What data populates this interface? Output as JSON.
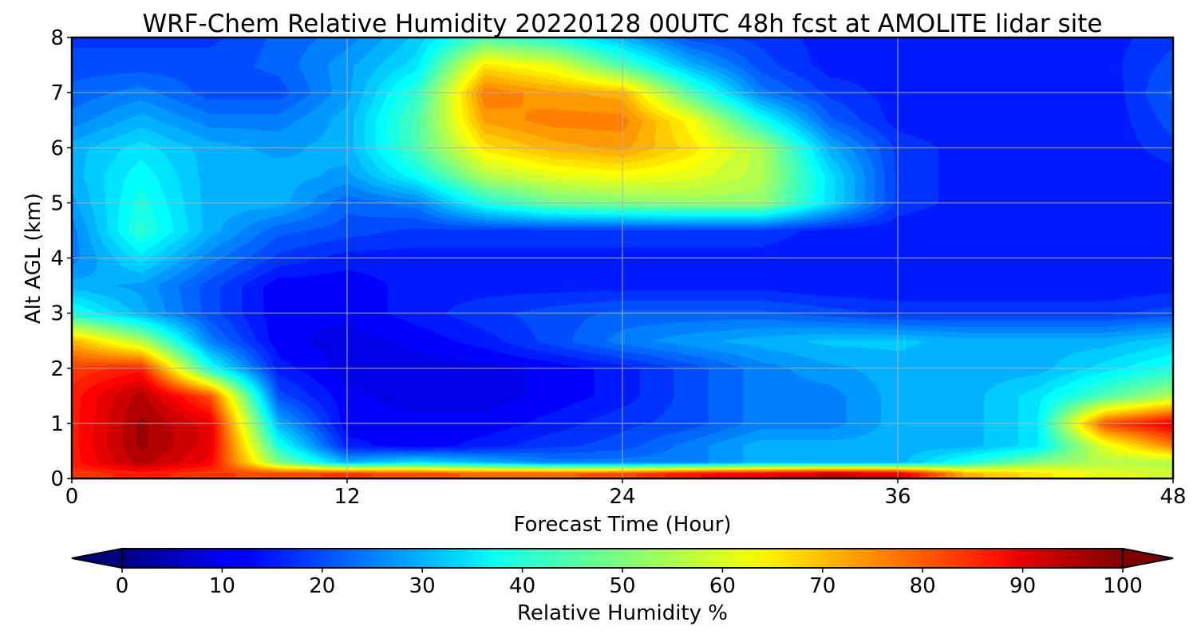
{
  "chart_data": {
    "type": "heatmap",
    "title": "WRF-Chem Relative Humidity 20220128 00UTC 48h fcst at AMOLITE lidar site",
    "xlabel": "Forecast Time (Hour)",
    "ylabel": "Alt AGL (km)",
    "x_ticks": [
      0,
      12,
      24,
      36,
      48
    ],
    "y_ticks": [
      0,
      1,
      2,
      3,
      4,
      5,
      6,
      7,
      8
    ],
    "xlim": [
      0,
      48
    ],
    "ylim": [
      0,
      8
    ],
    "grid": true,
    "colorbar": {
      "label": "Relative Humidity %",
      "ticks": [
        0,
        10,
        20,
        30,
        40,
        50,
        60,
        70,
        80,
        90,
        100
      ],
      "range": [
        0,
        100
      ],
      "extend": "both",
      "colormap": "jet",
      "orientation": "horizontal",
      "placement": "bottom"
    },
    "x": [
      0,
      3,
      6,
      9,
      12,
      15,
      18,
      21,
      24,
      27,
      30,
      33,
      36,
      39,
      42,
      45,
      48
    ],
    "y": [
      0.1,
      0.3,
      0.6,
      1.0,
      1.5,
      2.0,
      2.5,
      3.0,
      3.5,
      4.0,
      4.5,
      5.0,
      5.5,
      6.0,
      6.5,
      7.0,
      7.5,
      8.0
    ],
    "z": [
      [
        82,
        85,
        82,
        80,
        82,
        80,
        78,
        78,
        80,
        86,
        88,
        92,
        90,
        70,
        65,
        60,
        58
      ],
      [
        85,
        95,
        88,
        50,
        30,
        35,
        30,
        25,
        25,
        25,
        30,
        30,
        30,
        40,
        50,
        55,
        55
      ],
      [
        85,
        97,
        90,
        40,
        15,
        12,
        15,
        18,
        20,
        25,
        30,
        30,
        30,
        30,
        35,
        60,
        75
      ],
      [
        85,
        97,
        90,
        30,
        12,
        12,
        12,
        15,
        18,
        20,
        25,
        25,
        30,
        30,
        35,
        80,
        90
      ],
      [
        85,
        95,
        80,
        20,
        12,
        10,
        10,
        12,
        15,
        20,
        25,
        25,
        30,
        30,
        35,
        45,
        55
      ],
      [
        82,
        85,
        40,
        15,
        10,
        10,
        10,
        12,
        15,
        20,
        25,
        28,
        30,
        30,
        30,
        35,
        40
      ],
      [
        70,
        55,
        25,
        12,
        10,
        12,
        15,
        20,
        25,
        28,
        30,
        32,
        32,
        30,
        30,
        30,
        33
      ],
      [
        40,
        30,
        20,
        12,
        12,
        15,
        18,
        20,
        22,
        22,
        22,
        20,
        18,
        18,
        18,
        18,
        20
      ],
      [
        30,
        28,
        20,
        12,
        12,
        15,
        15,
        15,
        15,
        15,
        15,
        14,
        14,
        14,
        14,
        14,
        15
      ],
      [
        25,
        35,
        25,
        18,
        15,
        15,
        15,
        15,
        15,
        15,
        15,
        14,
        14,
        14,
        14,
        14,
        15
      ],
      [
        25,
        42,
        30,
        22,
        20,
        18,
        18,
        18,
        18,
        18,
        18,
        15,
        14,
        14,
        14,
        14,
        15
      ],
      [
        28,
        40,
        30,
        30,
        22,
        25,
        40,
        48,
        50,
        52,
        52,
        35,
        18,
        15,
        14,
        14,
        15
      ],
      [
        30,
        38,
        30,
        30,
        28,
        38,
        55,
        60,
        62,
        60,
        55,
        35,
        18,
        15,
        14,
        14,
        15
      ],
      [
        30,
        35,
        30,
        28,
        30,
        45,
        65,
        70,
        72,
        65,
        55,
        30,
        18,
        15,
        14,
        14,
        18
      ],
      [
        25,
        30,
        25,
        25,
        30,
        45,
        72,
        75,
        75,
        62,
        40,
        22,
        15,
        14,
        14,
        14,
        20
      ],
      [
        22,
        25,
        20,
        20,
        28,
        42,
        76,
        72,
        70,
        45,
        25,
        18,
        15,
        14,
        14,
        14,
        22
      ],
      [
        20,
        20,
        20,
        22,
        28,
        35,
        65,
        60,
        45,
        30,
        20,
        15,
        15,
        15,
        15,
        15,
        20
      ],
      [
        18,
        18,
        18,
        22,
        25,
        32,
        45,
        40,
        30,
        20,
        18,
        15,
        15,
        15,
        15,
        15,
        18
      ]
    ]
  }
}
